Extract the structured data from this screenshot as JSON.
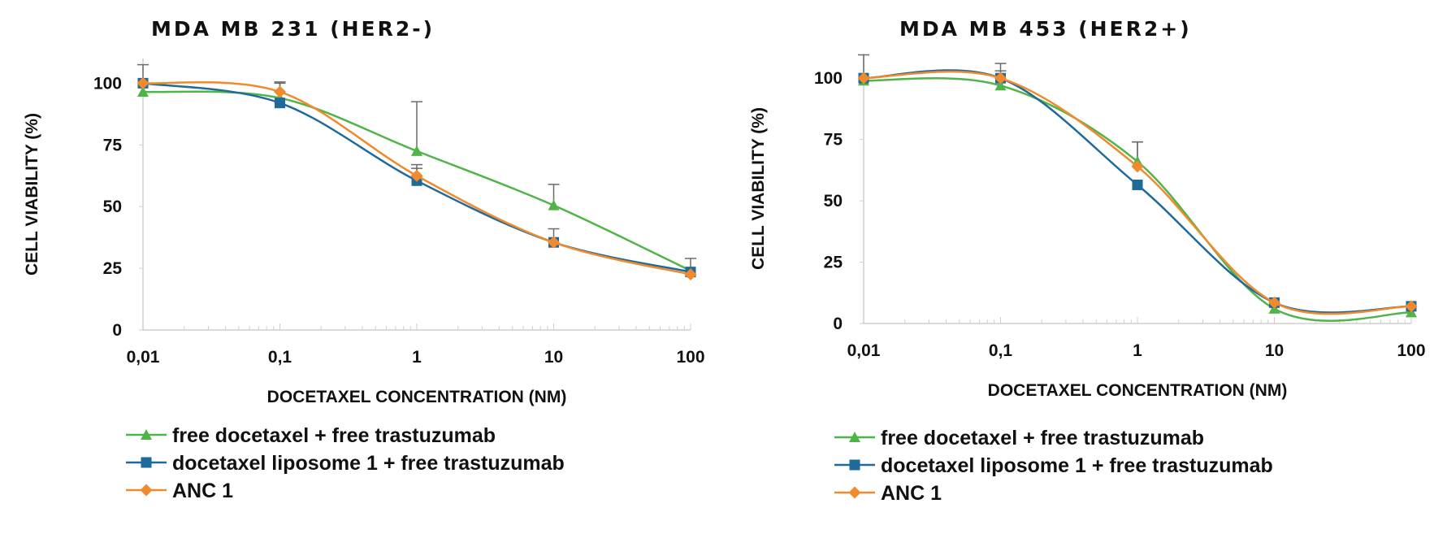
{
  "chart_data": [
    {
      "type": "line",
      "title": "MDA MB 231 (HER2-)",
      "xlabel": "DOCETAXEL CONCENTRATION (NM)",
      "ylabel": "CELL VIABILITY  (%)",
      "x_scale": "log",
      "x": [
        0.01,
        0.1,
        1,
        10,
        100
      ],
      "x_tick_labels": [
        "0,01",
        "0,1",
        "1",
        "10",
        "100"
      ],
      "y_ticks": [
        0,
        25,
        50,
        75,
        100
      ],
      "ylim": [
        0,
        110
      ],
      "grid": false,
      "legend_position": "bottom-left",
      "series": [
        {
          "name": "free docetaxel + free trastuzumab",
          "marker": "triangle",
          "color": "#4fb548",
          "values": [
            96.5,
            94,
            72.5,
            50.5,
            24
          ],
          "error": [
            null,
            null,
            20,
            8.5,
            5
          ]
        },
        {
          "name": "docetaxel liposome 1 + free trastuzumab",
          "marker": "square",
          "color": "#1f6a9b",
          "values": [
            100,
            92,
            60.5,
            35.5,
            23.5
          ],
          "error": [
            null,
            8.5,
            5,
            5.5,
            null
          ]
        },
        {
          "name": "ANC 1",
          "marker": "diamond",
          "color": "#f08a2c",
          "values": [
            100,
            96.5,
            62.5,
            35.5,
            22.5
          ],
          "error": [
            7.5,
            3.5,
            4.5,
            null,
            null
          ]
        }
      ]
    },
    {
      "type": "line",
      "title": "MDA MB 453 (HER2+)",
      "xlabel": "DOCETAXEL CONCENTRATION (NM)",
      "ylabel": "CELL VIABILITY (%)",
      "x_scale": "log",
      "x": [
        0.01,
        0.1,
        1,
        10,
        100
      ],
      "x_tick_labels": [
        "0,01",
        "0,1",
        "1",
        "10",
        "100"
      ],
      "y_ticks": [
        0,
        25,
        50,
        75,
        100
      ],
      "ylim": [
        0,
        110
      ],
      "grid": false,
      "legend_position": "bottom-left",
      "series": [
        {
          "name": "free docetaxel + free trastuzumab",
          "marker": "triangle",
          "color": "#4fb548",
          "values": [
            99,
            97,
            66,
            6,
            4.5
          ],
          "error": [
            null,
            null,
            8,
            null,
            null
          ]
        },
        {
          "name": "docetaxel liposome 1 + free trastuzumab",
          "marker": "square",
          "color": "#1f6a9b",
          "values": [
            100,
            100,
            56.5,
            8.5,
            7
          ],
          "error": [
            null,
            6,
            null,
            null,
            null
          ]
        },
        {
          "name": "ANC 1",
          "marker": "diamond",
          "color": "#f08a2c",
          "values": [
            100,
            100,
            64,
            8.5,
            7
          ],
          "error": [
            9.5,
            3,
            10,
            null,
            null
          ]
        }
      ]
    }
  ]
}
